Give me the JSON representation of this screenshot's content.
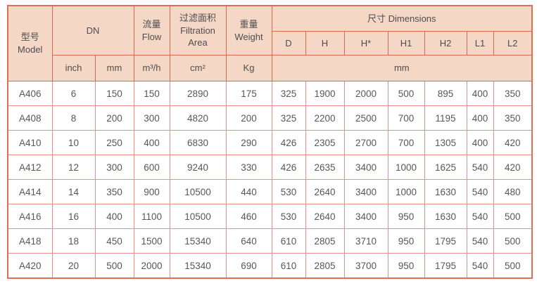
{
  "table": {
    "header": {
      "model_zh": "型号",
      "model_en": "Model",
      "dn_label": "DN",
      "inch_label": "inch",
      "mm_label": "mm",
      "flow_zh": "流量",
      "flow_en": "Flow",
      "flow_unit": "m³/h",
      "filtration_zh": "过滤面积",
      "filtration_en1": "Filtration",
      "filtration_en2": "Area",
      "filtration_unit": "cm²",
      "weight_zh": "重量",
      "weight_en": "Weight",
      "weight_unit": "Kg",
      "dimensions_label": "尺寸 Dimensions",
      "dim_cols": [
        "D",
        "H",
        "H*",
        "H1",
        "H2",
        "L1",
        "L2"
      ],
      "dim_unit": "mm"
    },
    "rows": [
      [
        "A406",
        "6",
        "150",
        "150",
        "2890",
        "175",
        "325",
        "1900",
        "2000",
        "500",
        "895",
        "400",
        "350"
      ],
      [
        "A408",
        "8",
        "200",
        "300",
        "4820",
        "200",
        "325",
        "2200",
        "2500",
        "700",
        "1195",
        "400",
        "350"
      ],
      [
        "A410",
        "10",
        "250",
        "400",
        "6830",
        "290",
        "426",
        "2305",
        "2700",
        "700",
        "1305",
        "400",
        "420"
      ],
      [
        "A412",
        "12",
        "300",
        "600",
        "9240",
        "330",
        "426",
        "2635",
        "3400",
        "1000",
        "1625",
        "540",
        "420"
      ],
      [
        "A414",
        "14",
        "350",
        "900",
        "10500",
        "440",
        "530",
        "2640",
        "3400",
        "1000",
        "1630",
        "540",
        "480"
      ],
      [
        "A416",
        "16",
        "400",
        "1100",
        "10500",
        "460",
        "530",
        "2640",
        "3400",
        "950",
        "1630",
        "540",
        "500"
      ],
      [
        "A418",
        "18",
        "450",
        "1500",
        "15340",
        "640",
        "610",
        "2805",
        "3710",
        "950",
        "1795",
        "540",
        "500"
      ],
      [
        "A420",
        "20",
        "500",
        "2000",
        "15340",
        "690",
        "610",
        "2805",
        "3700",
        "950",
        "1795",
        "540",
        "500"
      ]
    ],
    "colors": {
      "header_bg": "#f5d7c6",
      "header_border": "#db6950",
      "body_border": "#ec8e88",
      "text": "#57575a"
    }
  }
}
